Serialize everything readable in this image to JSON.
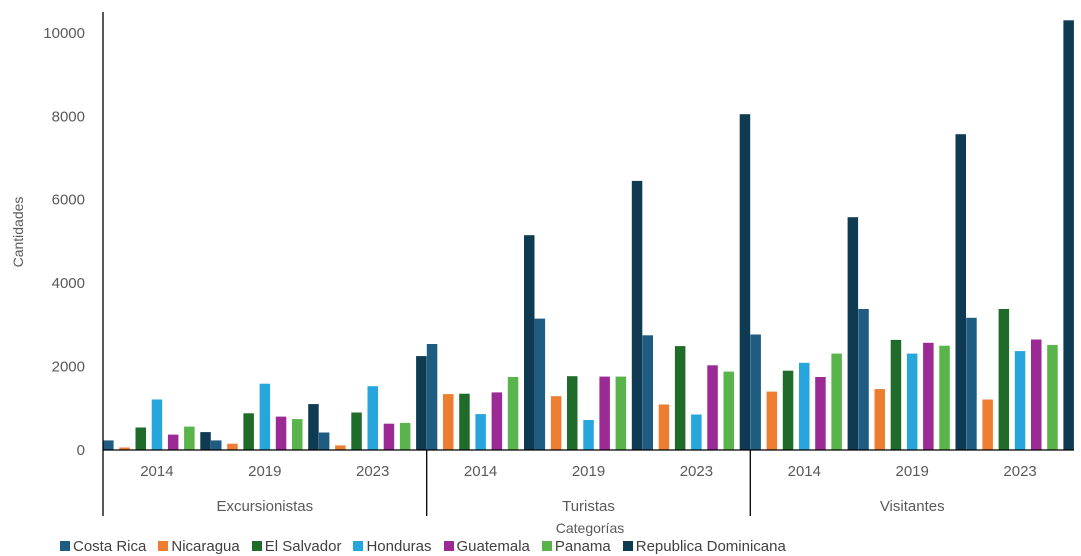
{
  "chart_data": {
    "type": "bar",
    "xlabel": "Categorías",
    "ylabel": "Cantidades",
    "ylim": [
      0,
      10500
    ],
    "yticks": [
      0,
      2000,
      4000,
      6000,
      8000,
      10000
    ],
    "groups": [
      "Excursionistas",
      "Turistas",
      "Visitantes"
    ],
    "years": [
      "2014",
      "2019",
      "2023"
    ],
    "legend_position": "bottom",
    "grid": false,
    "series": [
      {
        "name": "Costa Rica",
        "color": "#1f5c82",
        "values": [
          230,
          230,
          420,
          2540,
          3150,
          2750,
          2770,
          3380,
          3170
        ]
      },
      {
        "name": "Nicaragua",
        "color": "#ed7d31",
        "values": [
          60,
          150,
          110,
          1340,
          1290,
          1090,
          1400,
          1460,
          1210
        ]
      },
      {
        "name": "El Salvador",
        "color": "#1e6b2a",
        "values": [
          540,
          880,
          900,
          1350,
          1770,
          2490,
          1900,
          2640,
          3380
        ]
      },
      {
        "name": "Honduras",
        "color": "#27a6de",
        "values": [
          1210,
          1590,
          1530,
          860,
          720,
          850,
          2090,
          2310,
          2370
        ]
      },
      {
        "name": "Guatemala",
        "color": "#9c2a94",
        "values": [
          370,
          800,
          630,
          1380,
          1760,
          2030,
          1750,
          2570,
          2650
        ]
      },
      {
        "name": "Panama",
        "color": "#58b44b",
        "values": [
          560,
          740,
          650,
          1750,
          1760,
          1880,
          2310,
          2500,
          2520
        ]
      },
      {
        "name": "Republica Dominicana",
        "color": "#0e3a52",
        "values": [
          430,
          1100,
          2250,
          5150,
          6450,
          8050,
          5580,
          7570,
          10300
        ]
      }
    ]
  }
}
